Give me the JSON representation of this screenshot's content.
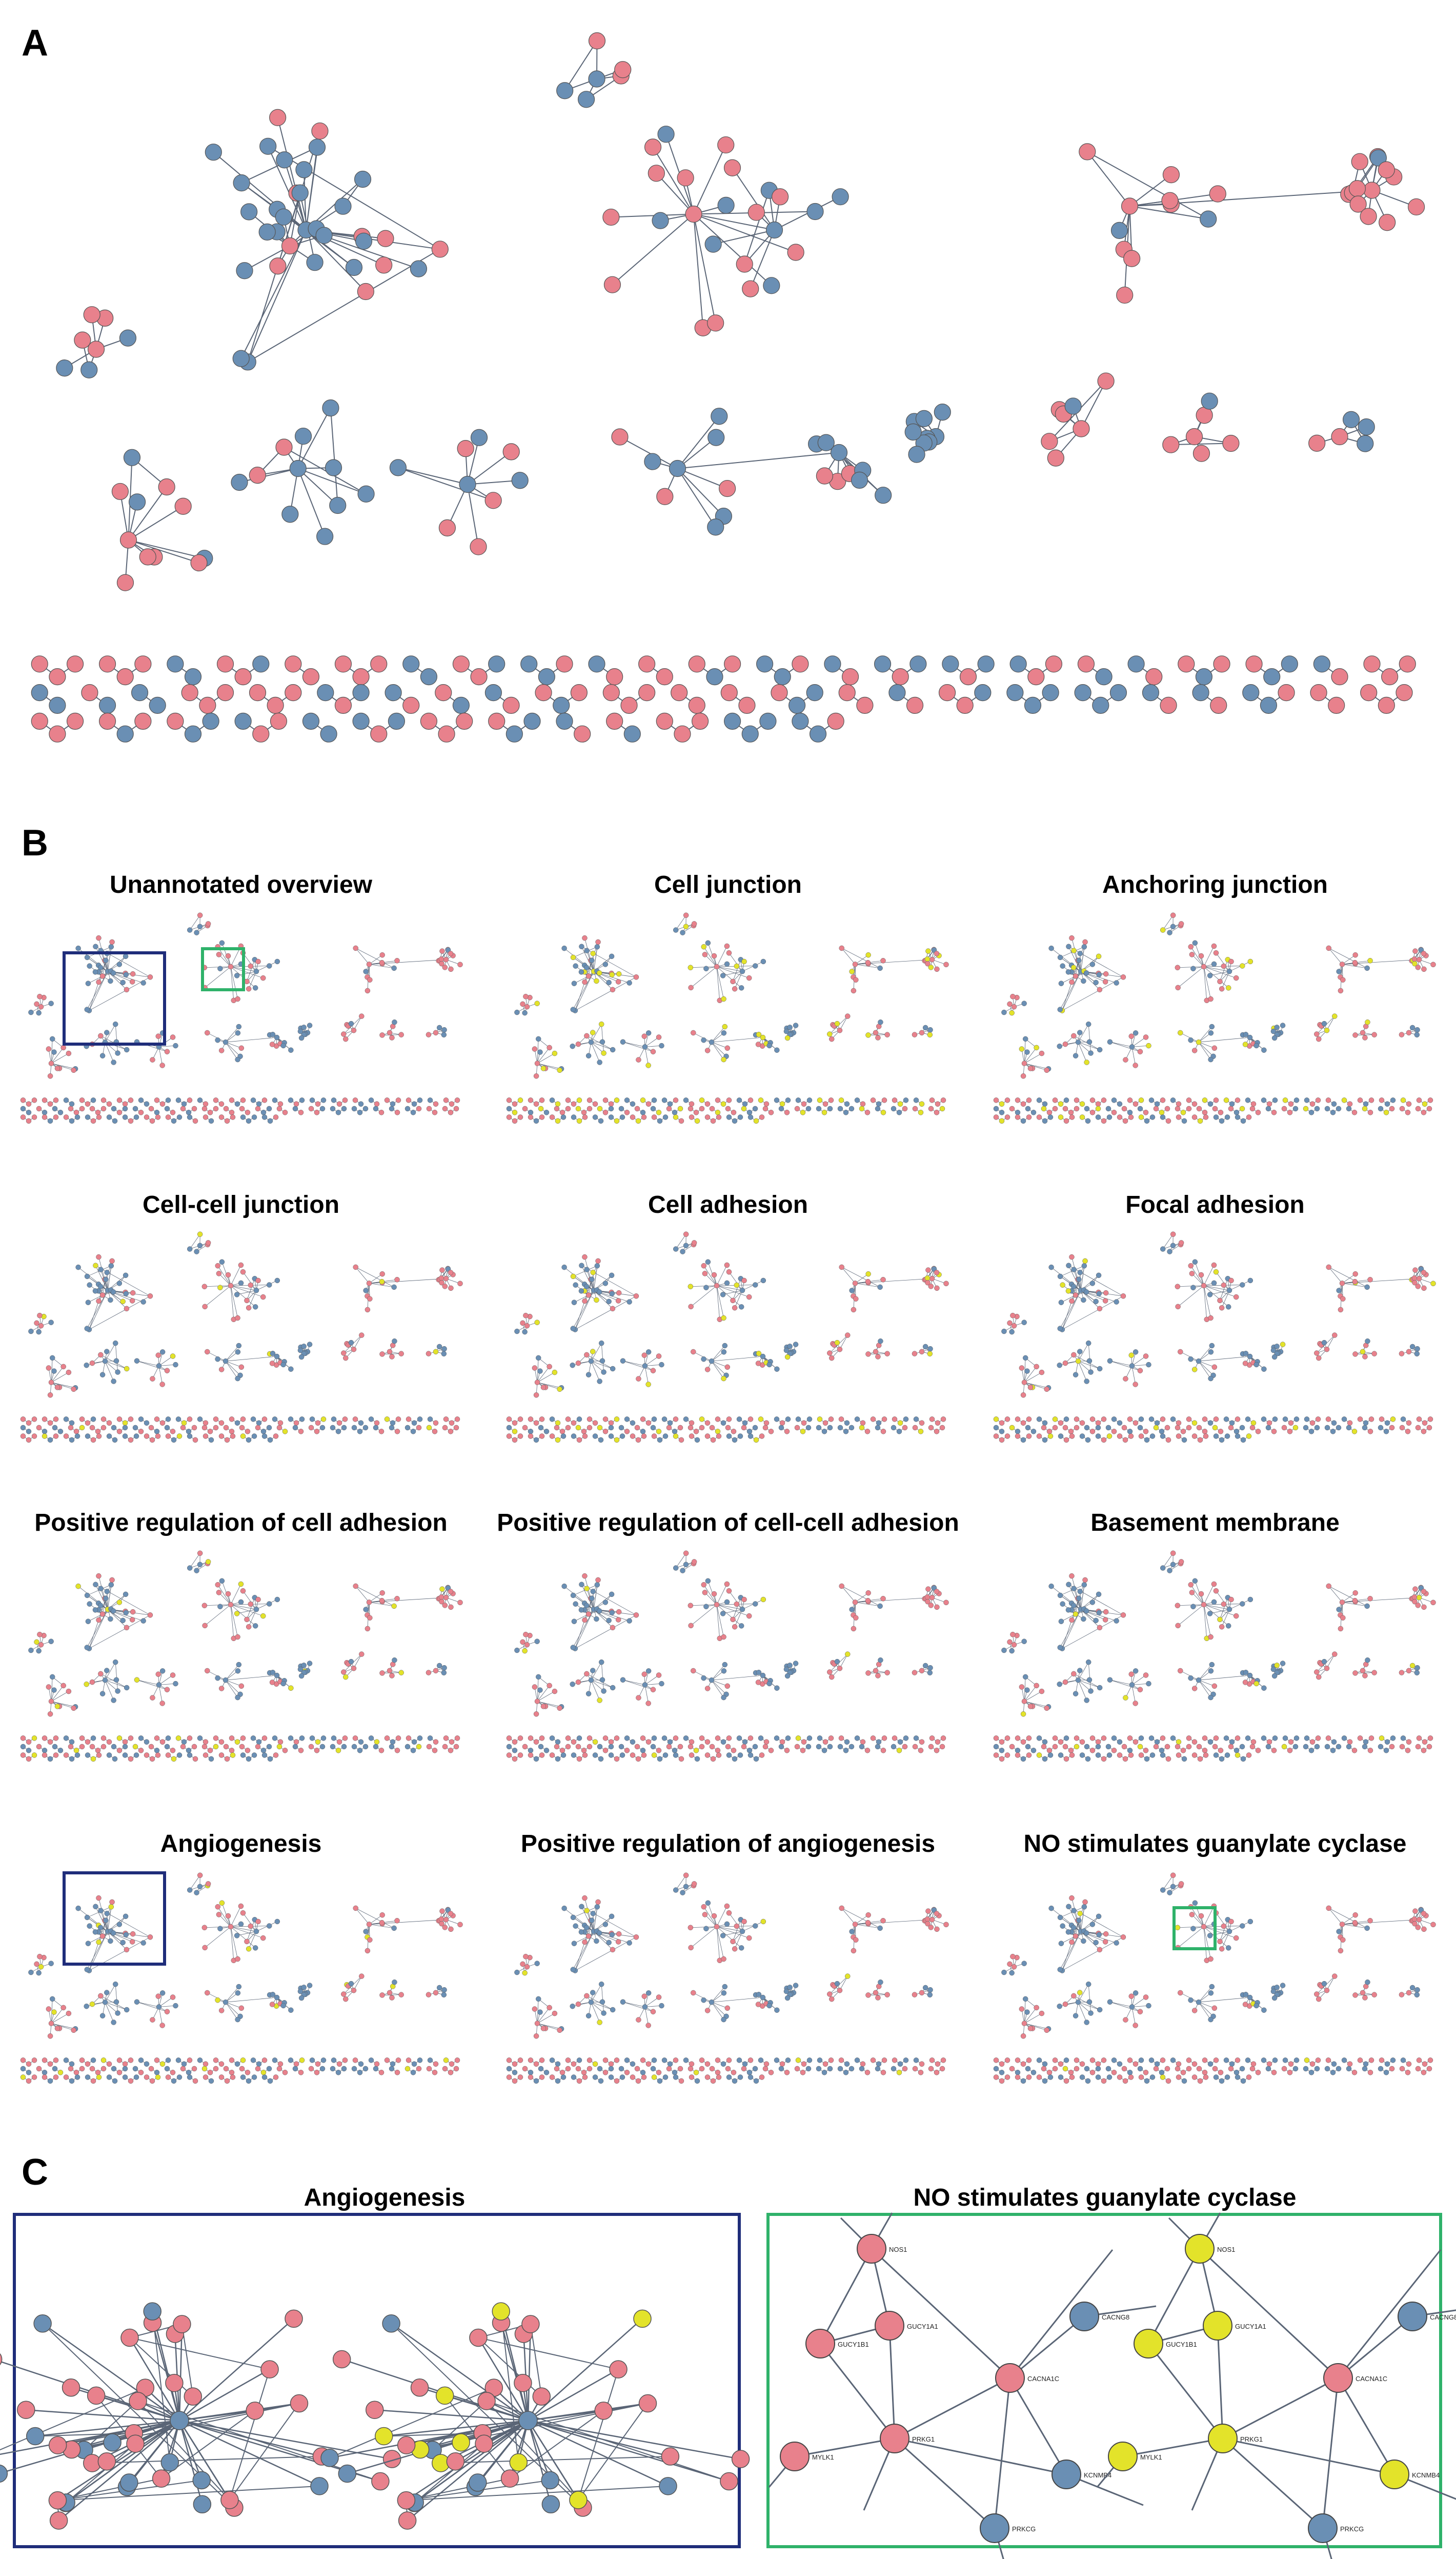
{
  "panels": {
    "a": {
      "label": "A"
    },
    "b": {
      "label": "B",
      "titles": [
        "Unannotated overview",
        "Cell junction",
        "Anchoring junction",
        "Cell-cell junction",
        "Cell adhesion",
        "Focal adhesion",
        "Positive regulation of cell adhesion",
        "Positive regulation of cell-cell adhesion",
        "Basement membrane",
        "Angiogenesis",
        "Positive regulation of angiogenesis",
        "NO stimulates guanylate cyclase"
      ]
    },
    "c": {
      "label": "C",
      "left_title": "Angiogenesis",
      "right_title": "NO stimulates guanylate cyclase",
      "gene_labels": [
        "NOS1",
        "GUCY1A1",
        "GUCY1B1",
        "CACNA1C",
        "CACNG8",
        "PRKG1",
        "KCNMB4",
        "PRKCG",
        "MYLK1"
      ]
    }
  },
  "colors": {
    "red_node": "#e8818c",
    "blue_node": "#6a8fb4",
    "yellow_node": "#e3e32a",
    "edge": "#5a6576",
    "navy_box": "#1f2d7a",
    "green_box": "#2fb26a"
  }
}
